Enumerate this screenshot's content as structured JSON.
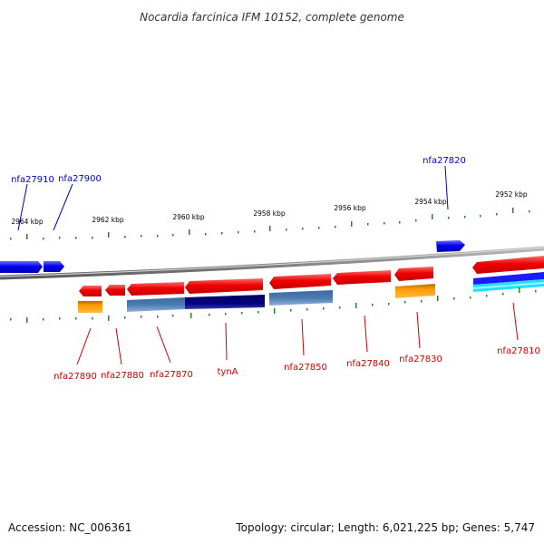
{
  "title": "Nocardia farcinica IFM 10152, complete genome",
  "footer": {
    "accession": "Accession: NC_006361",
    "topology": "Topology: circular; Length: 6,021,225 bp; Genes: 5,747"
  },
  "kbp_labels": [
    "2964 kbp",
    "2962 kbp",
    "2960 kbp",
    "2958 kbp",
    "2956 kbp",
    "2954 kbp",
    "2952 kbp"
  ],
  "genes_top": [
    "nfa27910",
    "nfa27900",
    "nfa27820"
  ],
  "genes_bottom": [
    "nfa27890",
    "nfa27880",
    "nfa27870",
    "tynA",
    "nfa27850",
    "nfa27840",
    "nfa27830",
    "nfa27810"
  ],
  "colors": {
    "plus_strand": "#0000ee",
    "minus_strand": "#ee0000",
    "orange": "#ff9900",
    "steel": "#4a7ab0",
    "navy": "#000080",
    "cyan": "#00e5ff",
    "tick": "#2e7d32"
  }
}
